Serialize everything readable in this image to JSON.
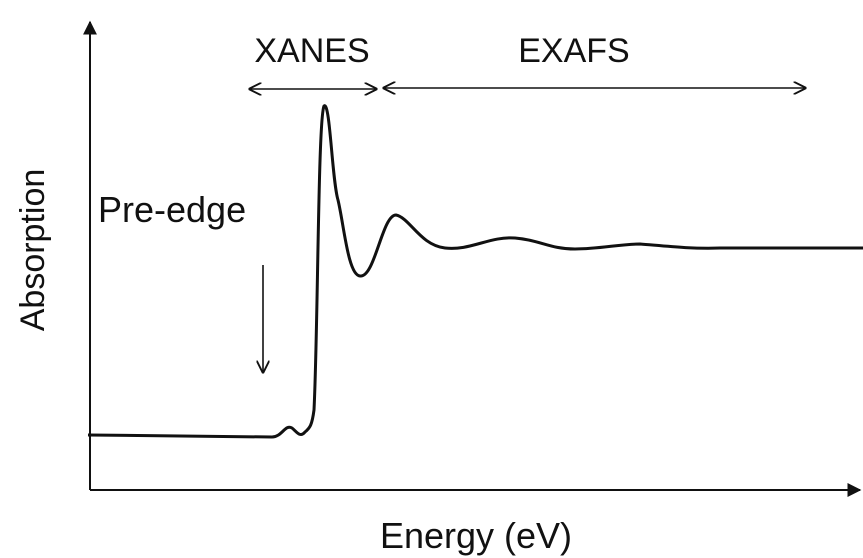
{
  "labels": {
    "xanes": "XANES",
    "exafs": "EXAFS",
    "pre_edge": "Pre-edge",
    "y_axis": "Absorption",
    "x_axis": "Energy (eV)"
  }
}
